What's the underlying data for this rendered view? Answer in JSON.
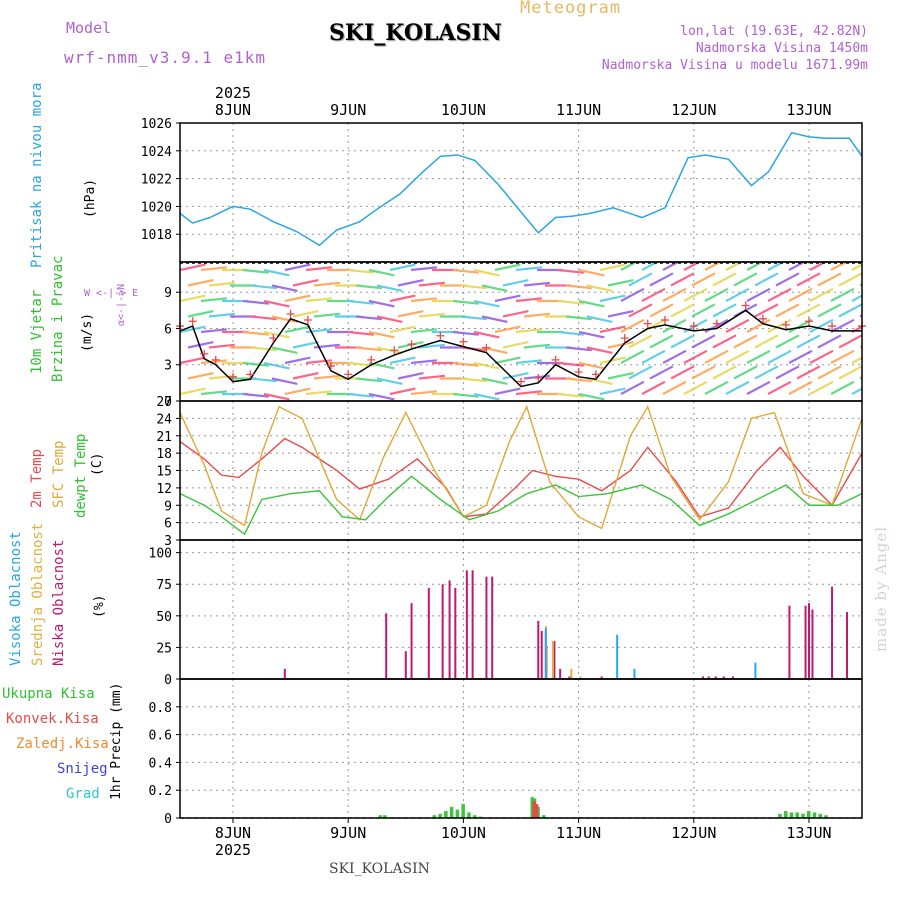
{
  "header": {
    "model_label": "Model",
    "model_name": "wrf-nmm_v3.9.1 e1km",
    "meteogram_label": "Meteogram",
    "station": "SKI_KOLASIN",
    "lonlat": "lon,lat (19.63E, 42.82N)",
    "altitude": "Nadmorska Visina 1450m",
    "model_altitude": "Nadmorska Visina u modelu 1671.99m",
    "footer_station": "SKI_KOLASIN",
    "watermark": "made by Angel"
  },
  "x_axis": {
    "days": [
      "8JUN",
      "9JUN",
      "10JUN",
      "11JUN",
      "12JUN",
      "13JUN"
    ],
    "year": "2025",
    "range_days": [
      -0.46,
      5.46
    ]
  },
  "panel_labels": {
    "pressure": {
      "name": "Pritisak na nivou mora",
      "unit": "(hPa)"
    },
    "wind": {
      "name1": "10m Vjetar",
      "name2": "Brzina i Pravac",
      "unit": "(m/s)",
      "compass_ns": "α<-|->N",
      "compass_ew": "W <-|-> E"
    },
    "temp": {
      "t2m": "2m Temp",
      "sfc": "SFC Temp",
      "dew": "dewpt Temp",
      "unit": "(C)"
    },
    "cloud": {
      "high": "Visoka Oblacnost",
      "mid": "Srednja Oblacnost",
      "low": "Niska Oblacnost",
      "unit": "(%)"
    },
    "precip": {
      "unit": "1hr Precip (mm)",
      "legend": [
        "Ukupna Kisa",
        "Konvek.Kisa",
        "Zaledj.Kisa",
        "Snijeg",
        "Grad"
      ]
    }
  },
  "colors": {
    "pressure": "#2aa6e0",
    "temp2m": "#e84a4a",
    "sfc": "#e0a838",
    "dew": "#3cc43c",
    "wind_line": "#000000",
    "gust": "#e84a4a",
    "cloud_high": "#28a8e0",
    "cloud_mid": "#e0b040",
    "cloud_low": "#c01870",
    "rain": "#3cc43c",
    "conv": "#e84a4a",
    "frz": "#f08a30",
    "snow": "#4040e0",
    "hail": "#30c8c8",
    "label_purple": "#b060d0",
    "label_gold": "#e8b860"
  },
  "chart_data": [
    {
      "type": "line",
      "title": "",
      "ylabel": "(hPa)",
      "ylim": [
        1016,
        1026
      ],
      "yticks": [
        1018,
        1020,
        1022,
        1024,
        1026
      ],
      "series": [
        {
          "name": "Pritisak na nivou mora",
          "x": [
            -0.46,
            -0.35,
            -0.2,
            0.0,
            0.15,
            0.35,
            0.55,
            0.75,
            0.9,
            1.1,
            1.25,
            1.45,
            1.65,
            1.8,
            1.95,
            2.1,
            2.3,
            2.5,
            2.65,
            2.8,
            2.95,
            3.1,
            3.3,
            3.55,
            3.75,
            3.95,
            4.1,
            4.3,
            4.5,
            4.65,
            4.85,
            5.0,
            5.15,
            5.35,
            5.46
          ],
          "y": [
            1019.5,
            1018.8,
            1019.2,
            1020.0,
            1019.8,
            1018.9,
            1018.2,
            1017.2,
            1018.3,
            1018.9,
            1019.8,
            1020.9,
            1022.5,
            1023.6,
            1023.7,
            1023.3,
            1021.6,
            1019.6,
            1018.1,
            1019.2,
            1019.3,
            1019.5,
            1019.9,
            1019.2,
            1019.9,
            1023.5,
            1023.7,
            1023.4,
            1021.5,
            1022.5,
            1025.3,
            1025.0,
            1024.9,
            1024.9,
            1023.6
          ]
        }
      ]
    },
    {
      "type": "line",
      "title": "",
      "ylabel": "(m/s)",
      "ylim": [
        0,
        11.5
      ],
      "yticks": [
        0,
        3,
        6,
        9
      ],
      "series": [
        {
          "name": "10m Vjetar",
          "x": [
            -0.46,
            -0.35,
            -0.25,
            -0.15,
            0.0,
            0.15,
            0.35,
            0.5,
            0.65,
            0.85,
            1.0,
            1.2,
            1.4,
            1.55,
            1.8,
            2.0,
            2.2,
            2.5,
            2.65,
            2.8,
            3.0,
            3.15,
            3.4,
            3.6,
            3.75,
            4.0,
            4.2,
            4.45,
            4.6,
            4.8,
            5.0,
            5.2,
            5.46
          ],
          "y": [
            5.8,
            6.2,
            3.5,
            3.0,
            1.6,
            1.8,
            4.8,
            6.8,
            6.3,
            2.5,
            1.8,
            3.0,
            3.8,
            4.3,
            5.0,
            4.5,
            4.0,
            1.2,
            1.5,
            3.0,
            2.0,
            1.8,
            4.8,
            6.0,
            6.3,
            5.8,
            6.0,
            7.5,
            6.4,
            5.9,
            6.2,
            5.8,
            5.8
          ]
        }
      ]
    },
    {
      "type": "line",
      "title": "",
      "ylabel": "(C)",
      "ylim": [
        3,
        27
      ],
      "yticks": [
        3,
        6,
        9,
        12,
        15,
        18,
        21,
        24,
        27
      ],
      "series": [
        {
          "name": "2m Temp",
          "x": [
            -0.46,
            -0.25,
            -0.1,
            0.05,
            0.25,
            0.45,
            0.6,
            0.9,
            1.1,
            1.35,
            1.6,
            1.85,
            2.0,
            2.2,
            2.45,
            2.6,
            2.8,
            3.0,
            3.2,
            3.45,
            3.6,
            3.85,
            4.05,
            4.3,
            4.55,
            4.75,
            4.95,
            5.2,
            5.46
          ],
          "y": [
            20.0,
            17.0,
            14.2,
            13.8,
            17.0,
            20.5,
            19.0,
            15.0,
            11.8,
            13.5,
            17.0,
            12.0,
            7.0,
            7.5,
            12.0,
            15.0,
            14.0,
            13.5,
            11.5,
            15.0,
            19.0,
            13.0,
            7.0,
            8.5,
            15.0,
            19.0,
            14.0,
            9.0,
            18.0
          ]
        },
        {
          "name": "SFC Temp",
          "x": [
            -0.46,
            -0.25,
            -0.1,
            0.1,
            0.25,
            0.4,
            0.6,
            0.9,
            1.1,
            1.3,
            1.5,
            1.75,
            2.0,
            2.2,
            2.4,
            2.55,
            2.75,
            3.0,
            3.2,
            3.45,
            3.6,
            3.8,
            4.05,
            4.3,
            4.5,
            4.7,
            4.95,
            5.2,
            5.46
          ],
          "y": [
            25.0,
            16.0,
            8.0,
            5.5,
            18.0,
            26.0,
            24.0,
            10.0,
            6.5,
            17.0,
            25.0,
            15.0,
            7.0,
            9.0,
            20.0,
            26.0,
            13.0,
            7.0,
            5.0,
            21.0,
            26.0,
            14.0,
            6.5,
            13.0,
            24.0,
            25.0,
            11.0,
            9.0,
            24.0
          ]
        },
        {
          "name": "dewpt Temp",
          "x": [
            -0.46,
            -0.25,
            -0.1,
            0.1,
            0.25,
            0.5,
            0.75,
            0.95,
            1.15,
            1.35,
            1.55,
            1.8,
            2.05,
            2.3,
            2.55,
            2.8,
            3.0,
            3.25,
            3.55,
            3.8,
            4.05,
            4.3,
            4.55,
            4.8,
            5.0,
            5.25,
            5.46
          ],
          "y": [
            11.0,
            9.0,
            7.0,
            4.0,
            10.0,
            11.0,
            11.5,
            7.0,
            6.5,
            10.5,
            14.0,
            10.0,
            6.5,
            8.0,
            11.0,
            12.5,
            10.5,
            11.0,
            12.5,
            10.0,
            5.5,
            7.5,
            10.0,
            12.5,
            9.0,
            9.0,
            11.0
          ]
        }
      ]
    },
    {
      "type": "bar",
      "title": "",
      "ylabel": "(%)",
      "ylim": [
        0,
        110
      ],
      "yticks": [
        0,
        25,
        50,
        75,
        100
      ],
      "series": [
        {
          "name": "Niska Oblacnost",
          "x": [
            0.45,
            1.33,
            1.5,
            1.55,
            1.7,
            1.82,
            1.88,
            1.93,
            2.03,
            2.08,
            2.2,
            2.25,
            2.65,
            2.68,
            2.72,
            2.79,
            2.84,
            2.92,
            3.2,
            4.08,
            4.13,
            4.19,
            4.26,
            4.34,
            4.83,
            4.97,
            5.0,
            5.03,
            5.2,
            5.33
          ],
          "y": [
            8,
            52,
            22,
            60,
            72,
            75,
            78,
            72,
            86,
            86,
            81,
            81,
            46,
            38,
            26,
            30,
            8,
            2,
            2,
            2,
            2,
            2,
            2,
            2,
            58,
            58,
            60,
            55,
            73,
            53
          ]
        },
        {
          "name": "Srednja Oblacnost",
          "x": [
            2.7,
            2.76,
            2.92,
            3.0
          ],
          "y": [
            42,
            30,
            8,
            2
          ]
        },
        {
          "name": "Visoka Oblacnost",
          "x": [
            2.68,
            3.3,
            3.45,
            4.5
          ],
          "y": [
            40,
            35,
            8,
            13
          ]
        }
      ]
    },
    {
      "type": "bar",
      "title": "",
      "ylabel": "1hr Precip (mm)",
      "ylim": [
        0,
        1.0
      ],
      "yticks": [
        0,
        0.2,
        0.4,
        0.6,
        0.8
      ],
      "series": [
        {
          "name": "Ukupna Kisa",
          "x": [
            1.28,
            1.32,
            1.75,
            1.8,
            1.85,
            1.9,
            1.95,
            2.0,
            2.05,
            2.1,
            2.15,
            2.6,
            2.62,
            2.65,
            2.7,
            4.75,
            4.8,
            4.85,
            4.9,
            4.95,
            5.0,
            5.05,
            5.1,
            5.15
          ],
          "y": [
            0.02,
            0.02,
            0.02,
            0.03,
            0.05,
            0.08,
            0.06,
            0.1,
            0.04,
            0.02,
            0.01,
            0.15,
            0.14,
            0.08,
            0.02,
            0.03,
            0.05,
            0.04,
            0.04,
            0.03,
            0.05,
            0.04,
            0.03,
            0.02
          ]
        },
        {
          "name": "Konvek.Kisa",
          "x": [
            2.6,
            2.62
          ],
          "y": [
            0.12,
            0.1
          ]
        }
      ]
    }
  ]
}
